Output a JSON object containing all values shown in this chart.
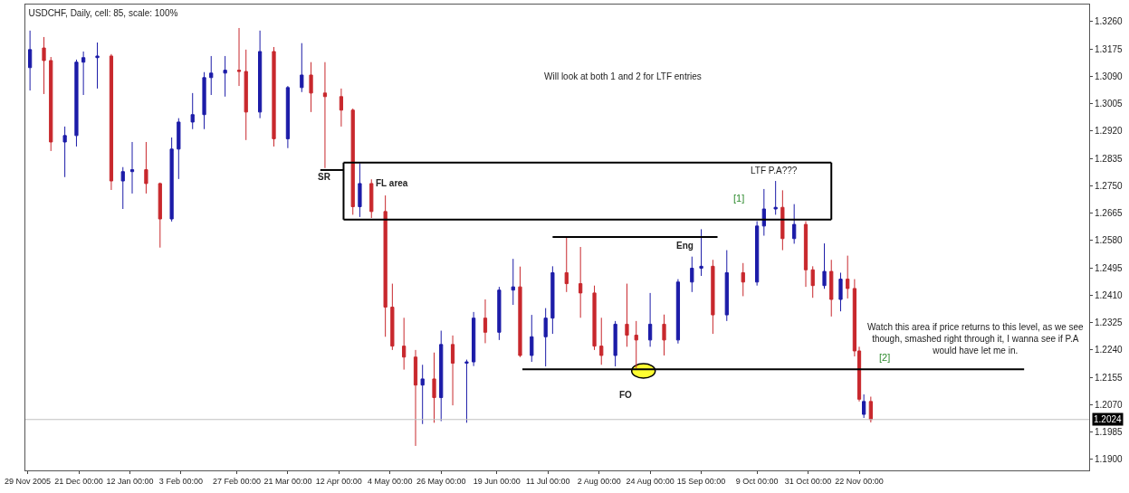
{
  "chart_data": {
    "type": "candlestick",
    "title": "USDCHF, Daily, cell: 85, scale: 100%",
    "x": [
      "2005-11-30",
      "2005-12-06",
      "2005-12-09",
      "2005-12-15",
      "2005-12-20",
      "2005-12-23",
      "2005-12-29",
      "2006-01-04",
      "2006-01-09",
      "2006-01-13",
      "2006-01-19",
      "2006-01-25",
      "2006-01-30",
      "2006-02-02",
      "2006-02-08",
      "2006-02-13",
      "2006-02-16",
      "2006-02-22",
      "2006-02-28",
      "2006-03-03",
      "2006-03-09",
      "2006-03-15",
      "2006-03-21",
      "2006-03-27",
      "2006-03-31",
      "2006-04-06",
      "2006-04-13",
      "2006-04-18",
      "2006-04-21",
      "2006-04-26",
      "2006-05-02",
      "2006-05-05",
      "2006-05-10",
      "2006-05-15",
      "2006-05-18",
      "2006-05-23",
      "2006-05-26",
      "2006-05-31",
      "2006-06-06",
      "2006-06-09",
      "2006-06-14",
      "2006-06-20",
      "2006-06-26",
      "2006-06-29",
      "2006-07-04",
      "2006-07-10",
      "2006-07-13",
      "2006-07-19",
      "2006-07-25",
      "2006-07-31",
      "2006-08-03",
      "2006-08-09",
      "2006-08-14",
      "2006-08-18",
      "2006-08-24",
      "2006-08-30",
      "2006-09-05",
      "2006-09-11",
      "2006-09-15",
      "2006-09-20",
      "2006-09-26",
      "2006-10-03",
      "2006-10-09",
      "2006-10-12",
      "2006-10-17",
      "2006-10-20",
      "2006-10-25",
      "2006-10-30",
      "2006-11-02",
      "2006-11-07",
      "2006-11-10",
      "2006-11-14",
      "2006-11-17",
      "2006-11-20",
      "2006-11-22",
      "2006-11-24",
      "2006-11-27"
    ],
    "ohlc": [
      [
        1.3117,
        1.3232,
        1.3046,
        1.3173
      ],
      [
        1.3178,
        1.3212,
        1.3035,
        1.3139
      ],
      [
        1.3139,
        1.315,
        1.2858,
        1.2886
      ],
      [
        1.2886,
        1.2934,
        1.2777,
        1.2906
      ],
      [
        1.2906,
        1.3142,
        1.2872,
        1.3134
      ],
      [
        1.3134,
        1.3167,
        1.3032,
        1.3148
      ],
      [
        1.3148,
        1.3195,
        1.3052,
        1.3153
      ],
      [
        1.3153,
        1.3159,
        1.2737,
        1.2765
      ],
      [
        1.2765,
        1.2808,
        1.2678,
        1.2794
      ],
      [
        1.2794,
        1.2886,
        1.2726,
        1.28
      ],
      [
        1.28,
        1.2886,
        1.2726,
        1.2757
      ],
      [
        1.2757,
        1.276,
        1.2558,
        1.2647
      ],
      [
        1.2647,
        1.29,
        1.2639,
        1.2864
      ],
      [
        1.2864,
        1.296,
        1.2771,
        1.2948
      ],
      [
        1.2948,
        1.3038,
        1.2926,
        1.2971
      ],
      [
        1.2971,
        1.3103,
        1.2926,
        1.3086
      ],
      [
        1.3086,
        1.3153,
        1.3032,
        1.31
      ],
      [
        1.31,
        1.3153,
        1.3027,
        1.3109
      ],
      [
        1.3109,
        1.324,
        1.306,
        1.3105
      ],
      [
        1.3105,
        1.3173,
        1.2892,
        1.2979
      ],
      [
        1.2979,
        1.3232,
        1.296,
        1.3167
      ],
      [
        1.3167,
        1.3181,
        1.2872,
        1.2896
      ],
      [
        1.2896,
        1.306,
        1.2867,
        1.3055
      ],
      [
        1.3055,
        1.3193,
        1.3041,
        1.3094
      ],
      [
        1.3094,
        1.3134,
        1.2979,
        1.3038
      ],
      [
        1.3038,
        1.3134,
        1.2805,
        1.3027
      ],
      [
        1.3027,
        1.3052,
        1.2934,
        1.2985
      ],
      [
        1.2985,
        1.299,
        1.266,
        1.2685
      ],
      [
        1.2685,
        1.282,
        1.2653,
        1.2757
      ],
      [
        1.2757,
        1.277,
        1.265,
        1.267
      ],
      [
        1.267,
        1.272,
        1.2281,
        1.2373
      ],
      [
        1.2373,
        1.2446,
        1.224,
        1.2252
      ],
      [
        1.2252,
        1.234,
        1.2179,
        1.2218
      ],
      [
        1.2218,
        1.224,
        1.1942,
        1.2131
      ],
      [
        1.2131,
        1.2194,
        1.201,
        1.215
      ],
      [
        1.215,
        1.2232,
        1.2014,
        1.2092
      ],
      [
        1.2092,
        1.23,
        1.2019,
        1.2257
      ],
      [
        1.2257,
        1.2285,
        1.2068,
        1.2199
      ],
      [
        1.2199,
        1.221,
        1.2014,
        1.2203
      ],
      [
        1.2203,
        1.2358,
        1.219,
        1.2339
      ],
      [
        1.2339,
        1.2397,
        1.2261,
        1.2295
      ],
      [
        1.2295,
        1.2436,
        1.2271,
        1.2426
      ],
      [
        1.2426,
        1.2523,
        1.238,
        1.2436
      ],
      [
        1.2436,
        1.2499,
        1.2218,
        1.2223
      ],
      [
        1.2223,
        1.2349,
        1.2203,
        1.2281
      ],
      [
        1.2281,
        1.237,
        1.2189,
        1.2339
      ],
      [
        1.2339,
        1.25,
        1.229,
        1.248
      ],
      [
        1.248,
        1.2591,
        1.242,
        1.2446
      ],
      [
        1.2446,
        1.256,
        1.234,
        1.2417
      ],
      [
        1.2417,
        1.244,
        1.224,
        1.2252
      ],
      [
        1.2252,
        1.234,
        1.2194,
        1.2223
      ],
      [
        1.2223,
        1.233,
        1.2189,
        1.232
      ],
      [
        1.232,
        1.2446,
        1.225,
        1.2286
      ],
      [
        1.2286,
        1.233,
        1.2184,
        1.2271
      ],
      [
        1.2271,
        1.2417,
        1.225,
        1.232
      ],
      [
        1.232,
        1.235,
        1.2223,
        1.2271
      ],
      [
        1.2271,
        1.246,
        1.226,
        1.2451
      ],
      [
        1.2451,
        1.253,
        1.242,
        1.2494
      ],
      [
        1.2494,
        1.2615,
        1.247,
        1.25
      ],
      [
        1.25,
        1.252,
        1.229,
        1.2349
      ],
      [
        1.2349,
        1.255,
        1.233,
        1.248
      ],
      [
        1.248,
        1.251,
        1.2407,
        1.2451
      ],
      [
        1.2451,
        1.264,
        1.244,
        1.2625
      ],
      [
        1.2625,
        1.274,
        1.2595,
        1.2678
      ],
      [
        1.2678,
        1.2765,
        1.266,
        1.2683
      ],
      [
        1.2683,
        1.2736,
        1.255,
        1.2586
      ],
      [
        1.2586,
        1.2693,
        1.257,
        1.263
      ],
      [
        1.263,
        1.264,
        1.2436,
        1.2489
      ],
      [
        1.2489,
        1.25,
        1.2402,
        1.244
      ],
      [
        1.244,
        1.2571,
        1.243,
        1.2484
      ],
      [
        1.2484,
        1.252,
        1.2344,
        1.2397
      ],
      [
        1.2397,
        1.248,
        1.236,
        1.246
      ],
      [
        1.246,
        1.2533,
        1.24,
        1.2431
      ],
      [
        1.2431,
        1.246,
        1.222,
        1.2237
      ],
      [
        1.2237,
        1.225,
        1.208,
        1.2087
      ],
      [
        1.204,
        1.2102,
        1.2029,
        1.208
      ],
      [
        1.208,
        1.2095,
        1.2015,
        1.2024
      ]
    ],
    "colors": [
      "#1c1ca8",
      "#c8282d",
      "#c8282d",
      "#1c1ca8",
      "#1c1ca8",
      "#1c1ca8",
      "#1c1ca8",
      "#c8282d",
      "#1c1ca8",
      "#1c1ca8",
      "#c8282d",
      "#c8282d",
      "#1c1ca8",
      "#1c1ca8",
      "#1c1ca8",
      "#1c1ca8",
      "#1c1ca8",
      "#1c1ca8",
      "#c8282d",
      "#c8282d",
      "#1c1ca8",
      "#c8282d",
      "#1c1ca8",
      "#1c1ca8",
      "#c8282d",
      "#c8282d",
      "#c8282d",
      "#c8282d",
      "#1c1ca8",
      "#c8282d",
      "#c8282d",
      "#c8282d",
      "#c8282d",
      "#c8282d",
      "#1c1ca8",
      "#c8282d",
      "#1c1ca8",
      "#c8282d",
      "#1c1ca8",
      "#1c1ca8",
      "#c8282d",
      "#1c1ca8",
      "#1c1ca8",
      "#c8282d",
      "#1c1ca8",
      "#1c1ca8",
      "#1c1ca8",
      "#c8282d",
      "#c8282d",
      "#c8282d",
      "#c8282d",
      "#1c1ca8",
      "#c8282d",
      "#c8282d",
      "#1c1ca8",
      "#c8282d",
      "#1c1ca8",
      "#1c1ca8",
      "#1c1ca8",
      "#c8282d",
      "#1c1ca8",
      "#c8282d",
      "#1c1ca8",
      "#1c1ca8",
      "#1c1ca8",
      "#c8282d",
      "#1c1ca8",
      "#c8282d",
      "#c8282d",
      "#1c1ca8",
      "#c8282d",
      "#1c1ca8",
      "#c8282d",
      "#c8282d",
      "#c8282d",
      "#1c1ca8",
      "#c8282d"
    ],
    "series": [
      {
        "type": "line",
        "color": "#000000",
        "x": [
          "2006-04-14",
          "2006-11-10"
        ],
        "values": [
          1.2822,
          1.2822
        ]
      },
      {
        "type": "line",
        "color": "#000000",
        "x": [
          "2006-04-14",
          "2006-11-10"
        ],
        "values": [
          1.2645,
          1.2645
        ]
      },
      {
        "type": "line",
        "color": "#000000",
        "x": [
          "2006-04-14",
          "2006-04-14"
        ],
        "values": [
          1.2822,
          1.2645
        ]
      },
      {
        "type": "line",
        "color": "#000000",
        "x": [
          "2006-11-10",
          "2006-11-10"
        ],
        "values": [
          1.2822,
          1.2645
        ]
      },
      {
        "type": "line",
        "color": "#000000",
        "x": [
          "2006-04-04",
          "2006-04-14"
        ],
        "values": [
          1.2799,
          1.2799
        ]
      },
      {
        "type": "line",
        "color": "#000000",
        "x": [
          "2006-07-13",
          "2006-09-22"
        ],
        "values": [
          1.2591,
          1.2591
        ]
      },
      {
        "type": "line",
        "color": "#000000",
        "x": [
          "2006-06-30",
          "2007-02-01"
        ],
        "values": [
          1.218,
          1.218
        ]
      }
    ],
    "ref_lines": [
      {
        "axis": "y",
        "value": 1.2024,
        "label": "1.2024",
        "color": "#c0c0c0"
      }
    ],
    "annotations": [
      "Will look at both 1 and 2 for LTF entries",
      "SR",
      "FL area",
      "LTF P.A???",
      "[1]",
      "Eng",
      "FO",
      "[2]",
      "Watch this area if price returns to this level, as we see\nthough, smashed right through it, I wanna see if P.A\nwould have let me in."
    ],
    "xlim": [
      "2005-11-28",
      "2007-03-01"
    ],
    "xticks": [
      {
        "value": "2005-11-29",
        "label": "29 Nov 2005"
      },
      {
        "value": "2005-12-21",
        "label": "21 Dec 00:00"
      },
      {
        "value": "2006-01-12",
        "label": "12 Jan 00:00"
      },
      {
        "value": "2006-02-03",
        "label": "3 Feb 00:00"
      },
      {
        "value": "2006-02-27",
        "label": "27 Feb 00:00"
      },
      {
        "value": "2006-03-21",
        "label": "21 Mar 00:00"
      },
      {
        "value": "2006-04-12",
        "label": "12 Apr 00:00"
      },
      {
        "value": "2006-05-04",
        "label": "4 May 00:00"
      },
      {
        "value": "2006-05-26",
        "label": "26 May 00:00"
      },
      {
        "value": "2006-06-19",
        "label": "19 Jun 00:00"
      },
      {
        "value": "2006-07-11",
        "label": "11 Jul 00:00"
      },
      {
        "value": "2006-08-02",
        "label": "2 Aug 00:00"
      },
      {
        "value": "2006-08-24",
        "label": "24 Aug 00:00"
      },
      {
        "value": "2006-09-15",
        "label": "15 Sep 00:00"
      },
      {
        "value": "2006-10-09",
        "label": "9 Oct 00:00"
      },
      {
        "value": "2006-10-31",
        "label": "31 Oct 00:00"
      },
      {
        "value": "2006-11-22",
        "label": "22 Nov 00:00"
      }
    ],
    "ylim": [
      1.1866,
      1.3313
    ],
    "yticks": [
      {
        "value": 1.19,
        "label": "1.1900"
      },
      {
        "value": 1.1985,
        "label": "1.1985"
      },
      {
        "value": 1.207,
        "label": "1.2070"
      },
      {
        "value": 1.2155,
        "label": "1.2155"
      },
      {
        "value": 1.224,
        "label": "1.2240"
      },
      {
        "value": 1.2325,
        "label": "1.2325"
      },
      {
        "value": 1.241,
        "label": "1.2410"
      },
      {
        "value": 1.2495,
        "label": "1.2495"
      },
      {
        "value": 1.258,
        "label": "1.2580"
      },
      {
        "value": 1.2665,
        "label": "1.2665"
      },
      {
        "value": 1.275,
        "label": "1.2750"
      },
      {
        "value": 1.2835,
        "label": "1.2835"
      },
      {
        "value": 1.292,
        "label": "1.2920"
      },
      {
        "value": 1.3005,
        "label": "1.3005"
      },
      {
        "value": 1.309,
        "label": "1.3090"
      },
      {
        "value": 1.3175,
        "label": "1.3175"
      },
      {
        "value": 1.326,
        "label": "1.3260"
      }
    ]
  }
}
